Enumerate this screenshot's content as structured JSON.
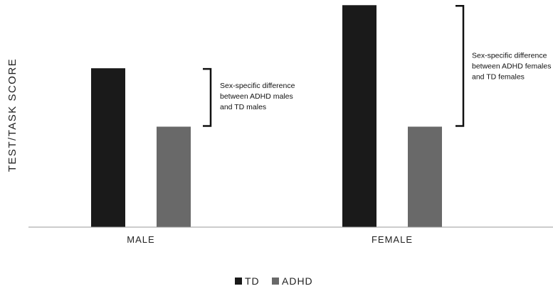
{
  "chart_data": {
    "type": "bar",
    "categories": [
      "MALE",
      "FEMALE"
    ],
    "series": [
      {
        "name": "TD",
        "color": "#1a1a1a",
        "values": [
          68,
          95
        ]
      },
      {
        "name": "ADHD",
        "color": "#696969",
        "values": [
          43,
          43
        ]
      }
    ],
    "ylabel": "TEST/TASK SCORE",
    "xlabel": "",
    "ylim": [
      0,
      96
    ],
    "grid": false,
    "legend": "bottom-center",
    "annotations": [
      {
        "category": "MALE",
        "lines": [
          "Sex-specific difference",
          "between ADHD males",
          "and TD males"
        ]
      },
      {
        "category": "FEMALE",
        "lines": [
          "Sex-specific difference",
          "between ADHD females",
          "and TD females"
        ]
      }
    ]
  }
}
